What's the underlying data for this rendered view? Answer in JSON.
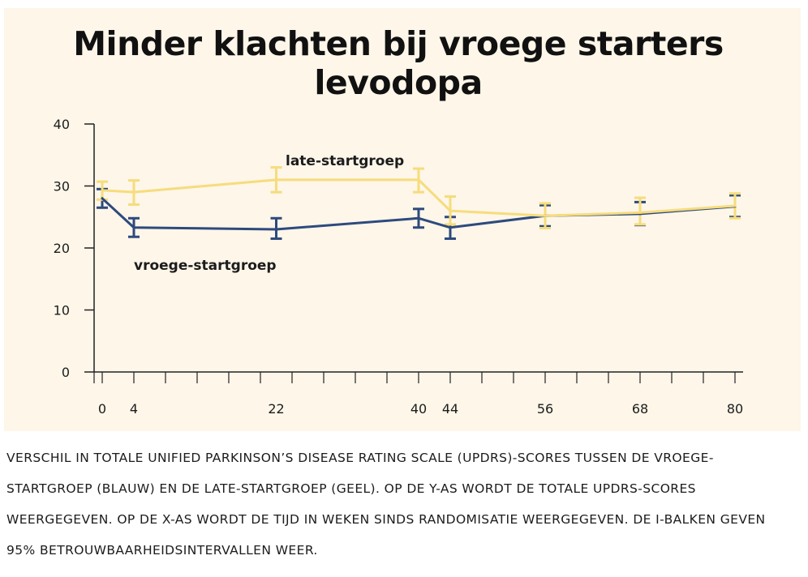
{
  "title": "Minder klachten bij vroege starters levodopa",
  "caption": "VERSCHIL IN TOTALE UNIFIED PARKINSON’S DISEASE RATING SCALE (UPDRS)-SCORES TUSSEN DE VROEGE-STARTGROEP (BLAUW) EN DE LATE-STARTGROEP (GEEL). OP DE Y-AS WORDT DE TOTALE UPDRS-SCORES WEERGEGEVEN. OP DE X-AS WORDT DE TIJD IN WEKEN SINDS RANDOMISATIE WEERGEGEVEN. DE I-BALKEN GEVEN 95% BETROUWBAARHEIDSINTERVALLEN WEER.",
  "colors": {
    "background": "#fdf6e9",
    "axis": "#222222",
    "early": "#2e4a7d",
    "late": "#f6dc7c"
  },
  "chart_data": {
    "type": "line",
    "title": "Minder klachten bij vroege starters levodopa",
    "xlabel": "",
    "ylabel": "",
    "ylim": [
      0,
      40
    ],
    "xlim": [
      0,
      80
    ],
    "xticks": [
      0,
      4,
      22,
      40,
      44,
      56,
      68,
      80
    ],
    "yticks": [
      0,
      10,
      20,
      30,
      40
    ],
    "x": [
      0,
      4,
      22,
      40,
      44,
      56,
      68,
      80
    ],
    "series": [
      {
        "name": "vroege-startgroep",
        "color": "#2e4a7d",
        "values": [
          28.0,
          23.3,
          23.0,
          24.8,
          23.3,
          25.2,
          25.5,
          26.7
        ],
        "ci_low": [
          26.5,
          21.8,
          21.5,
          23.3,
          21.5,
          23.5,
          23.7,
          25.0
        ],
        "ci_high": [
          29.5,
          24.8,
          24.8,
          26.3,
          25.0,
          26.9,
          27.4,
          28.5
        ]
      },
      {
        "name": "late-startgroep",
        "color": "#f6dc7c",
        "values": [
          29.3,
          29.0,
          31.0,
          31.0,
          26.0,
          25.2,
          25.7,
          26.8
        ],
        "ci_low": [
          27.8,
          27.0,
          29.0,
          29.0,
          23.8,
          23.2,
          23.8,
          24.8
        ],
        "ci_high": [
          30.7,
          30.9,
          33.0,
          32.8,
          28.3,
          27.2,
          28.1,
          28.8
        ]
      }
    ],
    "annotations": [
      "late-startgroep",
      "vroege-startgroep"
    ],
    "grid": false,
    "legend": "none"
  }
}
